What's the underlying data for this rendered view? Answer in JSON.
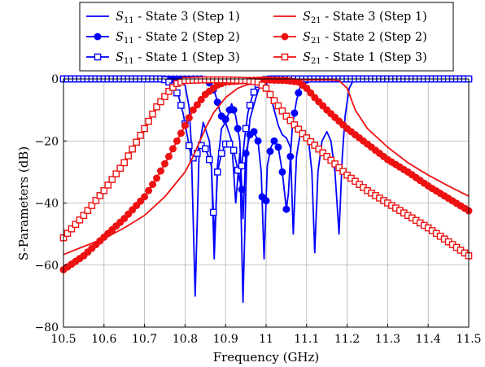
{
  "chart_data": {
    "type": "line",
    "xlabel": "Frequency (GHz)",
    "ylabel": "S-Parameters (dB)",
    "xlim": [
      10.5,
      11.5
    ],
    "ylim": [
      -80,
      0
    ],
    "x_ticks": [
      "10.5",
      "10.6",
      "10.7",
      "10.8",
      "10.9",
      "11",
      "11.1",
      "11.2",
      "11.3",
      "11.4",
      "11.5"
    ],
    "y_ticks": [
      "0",
      "−20",
      "−40",
      "−60",
      "−80"
    ],
    "grid": true,
    "legend_position": "top",
    "colors": {
      "s11": "#0000ff",
      "s21": "#ee1111"
    },
    "series": [
      {
        "name": "S11 - State 3 (Step 1)",
        "param": "S",
        "param_sub": "11",
        "state_text": " - State 3 (Step 1)",
        "color": "#0000ff",
        "marker": "none",
        "points": [
          [
            10.5,
            0
          ],
          [
            10.78,
            0
          ],
          [
            10.79,
            -0.3
          ],
          [
            10.8,
            -2
          ],
          [
            10.81,
            -9
          ],
          [
            10.815,
            -20
          ],
          [
            10.825,
            -70
          ],
          [
            10.835,
            -22
          ],
          [
            10.845,
            -14
          ],
          [
            10.86,
            -20
          ],
          [
            10.865,
            -28
          ],
          [
            10.872,
            -58
          ],
          [
            10.88,
            -28
          ],
          [
            10.89,
            -16
          ],
          [
            10.9,
            -14
          ],
          [
            10.915,
            -20
          ],
          [
            10.925,
            -40
          ],
          [
            10.935,
            -24
          ],
          [
            10.943,
            -72
          ],
          [
            10.952,
            -26
          ],
          [
            10.96,
            -13
          ],
          [
            10.975,
            -6
          ],
          [
            10.985,
            -2
          ],
          [
            10.995,
            -0.3
          ],
          [
            11.0,
            -1
          ],
          [
            11.01,
            -5
          ],
          [
            11.02,
            -10
          ],
          [
            11.03,
            -15
          ],
          [
            11.04,
            -18
          ],
          [
            11.05,
            -19
          ],
          [
            11.06,
            -22
          ],
          [
            11.067,
            -50
          ],
          [
            11.075,
            -25
          ],
          [
            11.085,
            -17
          ],
          [
            11.095,
            -18
          ],
          [
            11.105,
            -20
          ],
          [
            11.113,
            -30
          ],
          [
            11.12,
            -56
          ],
          [
            11.128,
            -30
          ],
          [
            11.138,
            -20
          ],
          [
            11.15,
            -17
          ],
          [
            11.16,
            -20
          ],
          [
            11.17,
            -30
          ],
          [
            11.18,
            -50
          ],
          [
            11.188,
            -25
          ],
          [
            11.195,
            -12
          ],
          [
            11.205,
            -3
          ],
          [
            11.215,
            -0.5
          ],
          [
            11.23,
            0
          ],
          [
            11.5,
            0
          ]
        ]
      },
      {
        "name": "S11 - State 2 (Step 2)",
        "param": "S",
        "param_sub": "11",
        "state_text": " - State 2 (Step 2)",
        "color": "#0000ff",
        "marker": "circle",
        "points": [
          [
            10.5,
            0
          ],
          [
            10.845,
            0
          ],
          [
            10.855,
            -0.5
          ],
          [
            10.865,
            -2
          ],
          [
            10.875,
            -5
          ],
          [
            10.885,
            -10
          ],
          [
            10.895,
            -14
          ],
          [
            10.905,
            -12
          ],
          [
            10.915,
            -8
          ],
          [
            10.925,
            -12
          ],
          [
            10.935,
            -20
          ],
          [
            10.943,
            -45
          ],
          [
            10.95,
            -24
          ],
          [
            10.96,
            -18
          ],
          [
            10.97,
            -17
          ],
          [
            10.98,
            -20
          ],
          [
            10.988,
            -30
          ],
          [
            10.995,
            -58
          ],
          [
            11.003,
            -28
          ],
          [
            11.012,
            -22
          ],
          [
            11.02,
            -20
          ],
          [
            11.03,
            -22
          ],
          [
            11.04,
            -30
          ],
          [
            11.05,
            -42
          ],
          [
            11.055,
            -37
          ],
          [
            11.06,
            -25
          ],
          [
            11.065,
            -15
          ],
          [
            11.075,
            -7
          ],
          [
            11.085,
            -2
          ],
          [
            11.095,
            -0.5
          ],
          [
            11.11,
            0
          ],
          [
            11.5,
            0
          ]
        ]
      },
      {
        "name": "S11 - State 1 (Step 3)",
        "param": "S",
        "param_sub": "11",
        "state_text": " - State 1 (Step 3)",
        "color": "#0000ff",
        "marker": "square",
        "points": [
          [
            10.5,
            0
          ],
          [
            10.745,
            0
          ],
          [
            10.755,
            -0.5
          ],
          [
            10.765,
            -1.5
          ],
          [
            10.775,
            -3
          ],
          [
            10.785,
            -6
          ],
          [
            10.795,
            -11
          ],
          [
            10.805,
            -18
          ],
          [
            10.815,
            -25
          ],
          [
            10.825,
            -26
          ],
          [
            10.835,
            -22
          ],
          [
            10.845,
            -21
          ],
          [
            10.855,
            -24
          ],
          [
            10.865,
            -28
          ],
          [
            10.873,
            -52
          ],
          [
            10.88,
            -30
          ],
          [
            10.89,
            -24
          ],
          [
            10.9,
            -21
          ],
          [
            10.91,
            -21
          ],
          [
            10.92,
            -23
          ],
          [
            10.928,
            -28
          ],
          [
            10.935,
            -33
          ],
          [
            10.94,
            -28
          ],
          [
            10.948,
            -18
          ],
          [
            10.955,
            -11
          ],
          [
            10.965,
            -6
          ],
          [
            10.975,
            -2.5
          ],
          [
            10.985,
            -1
          ],
          [
            10.995,
            -0.3
          ],
          [
            11.01,
            0
          ],
          [
            11.5,
            0
          ]
        ]
      },
      {
        "name": "S21 - State 3 (Step 1)",
        "param": "S",
        "param_sub": "21",
        "state_text": " - State 3 (Step 1)",
        "color": "#ee1111",
        "marker": "none",
        "points": [
          [
            10.5,
            -56.6
          ],
          [
            10.55,
            -54
          ],
          [
            10.6,
            -51.5
          ],
          [
            10.65,
            -48
          ],
          [
            10.7,
            -44
          ],
          [
            10.75,
            -38
          ],
          [
            10.8,
            -30
          ],
          [
            10.82,
            -25
          ],
          [
            10.85,
            -16
          ],
          [
            10.87,
            -11
          ],
          [
            10.9,
            -6
          ],
          [
            10.93,
            -3
          ],
          [
            10.95,
            -2
          ],
          [
            10.98,
            -1
          ],
          [
            11.0,
            -0.5
          ],
          [
            11.05,
            -0.3
          ],
          [
            11.1,
            -0.3
          ],
          [
            11.15,
            -0.3
          ],
          [
            11.18,
            -0.5
          ],
          [
            11.2,
            -3
          ],
          [
            11.22,
            -10
          ],
          [
            11.25,
            -16
          ],
          [
            11.3,
            -22
          ],
          [
            11.35,
            -27
          ],
          [
            11.4,
            -31
          ],
          [
            11.45,
            -34.5
          ],
          [
            11.5,
            -37.8
          ]
        ]
      },
      {
        "name": "S21 - State 2 (Step 2)",
        "param": "S",
        "param_sub": "21",
        "state_text": " - State 2 (Step 2)",
        "color": "#ee1111",
        "marker": "circle",
        "points": [
          [
            10.5,
            -61.5
          ],
          [
            10.55,
            -57
          ],
          [
            10.6,
            -51
          ],
          [
            10.65,
            -45
          ],
          [
            10.7,
            -38
          ],
          [
            10.73,
            -32
          ],
          [
            10.76,
            -25
          ],
          [
            10.8,
            -15
          ],
          [
            10.82,
            -10
          ],
          [
            10.85,
            -5
          ],
          [
            10.88,
            -2
          ],
          [
            10.9,
            -1
          ],
          [
            10.95,
            -0.5
          ],
          [
            11.0,
            -0.3
          ],
          [
            11.05,
            -0.5
          ],
          [
            11.08,
            -1
          ],
          [
            11.1,
            -3
          ],
          [
            11.12,
            -6
          ],
          [
            11.15,
            -10
          ],
          [
            11.2,
            -16
          ],
          [
            11.25,
            -21
          ],
          [
            11.3,
            -26
          ],
          [
            11.35,
            -30
          ],
          [
            11.4,
            -34.5
          ],
          [
            11.45,
            -38.5
          ],
          [
            11.5,
            -42.5
          ]
        ]
      },
      {
        "name": "S21 - State 1 (Step 3)",
        "param": "S",
        "param_sub": "21",
        "state_text": " - State 1 (Step 3)",
        "color": "#ee1111",
        "marker": "square",
        "points": [
          [
            10.5,
            -51.2
          ],
          [
            10.55,
            -44
          ],
          [
            10.6,
            -36
          ],
          [
            10.65,
            -27
          ],
          [
            10.7,
            -16
          ],
          [
            10.73,
            -9
          ],
          [
            10.76,
            -4
          ],
          [
            10.78,
            -1.5
          ],
          [
            10.8,
            -0.5
          ],
          [
            10.85,
            -0.3
          ],
          [
            10.9,
            -0.3
          ],
          [
            10.95,
            -0.5
          ],
          [
            10.98,
            -1
          ],
          [
            11.0,
            -3
          ],
          [
            11.02,
            -7
          ],
          [
            11.05,
            -12
          ],
          [
            11.1,
            -19
          ],
          [
            11.15,
            -25
          ],
          [
            11.2,
            -31
          ],
          [
            11.25,
            -36
          ],
          [
            11.3,
            -40
          ],
          [
            11.35,
            -44
          ],
          [
            11.4,
            -48
          ],
          [
            11.45,
            -52.5
          ],
          [
            11.5,
            -57
          ]
        ]
      }
    ]
  }
}
